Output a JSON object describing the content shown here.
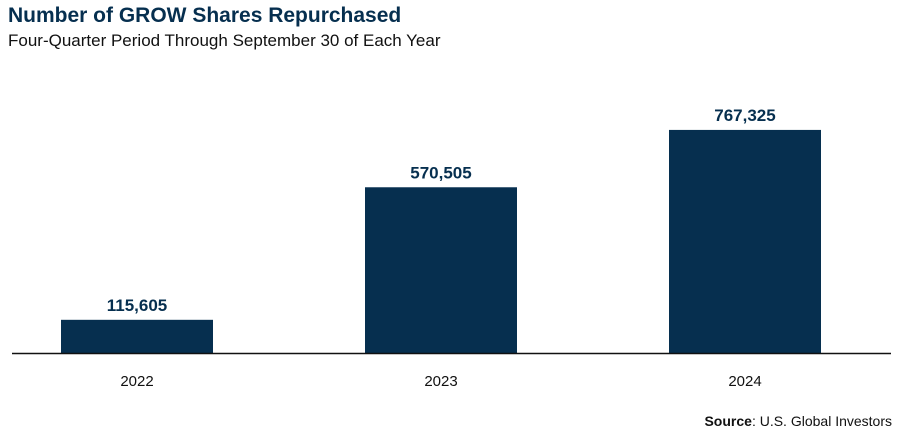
{
  "chart_data": {
    "type": "bar",
    "title": "Number of GROW Shares Repurchased",
    "subtitle": "Four-Quarter Period Through September 30 of Each Year",
    "categories": [
      "2022",
      "2023",
      "2024"
    ],
    "values": [
      115605,
      570505,
      767325
    ],
    "value_labels": [
      "115,605",
      "570,505",
      "767,325"
    ],
    "xlabel": "",
    "ylabel": "",
    "ylim": [
      0,
      870000
    ],
    "grid": false,
    "legend": "none",
    "bar_color": "#062f4f",
    "label_color": "#062f4f"
  },
  "source": {
    "label": "Source",
    "text": ": U.S. Global Investors"
  }
}
